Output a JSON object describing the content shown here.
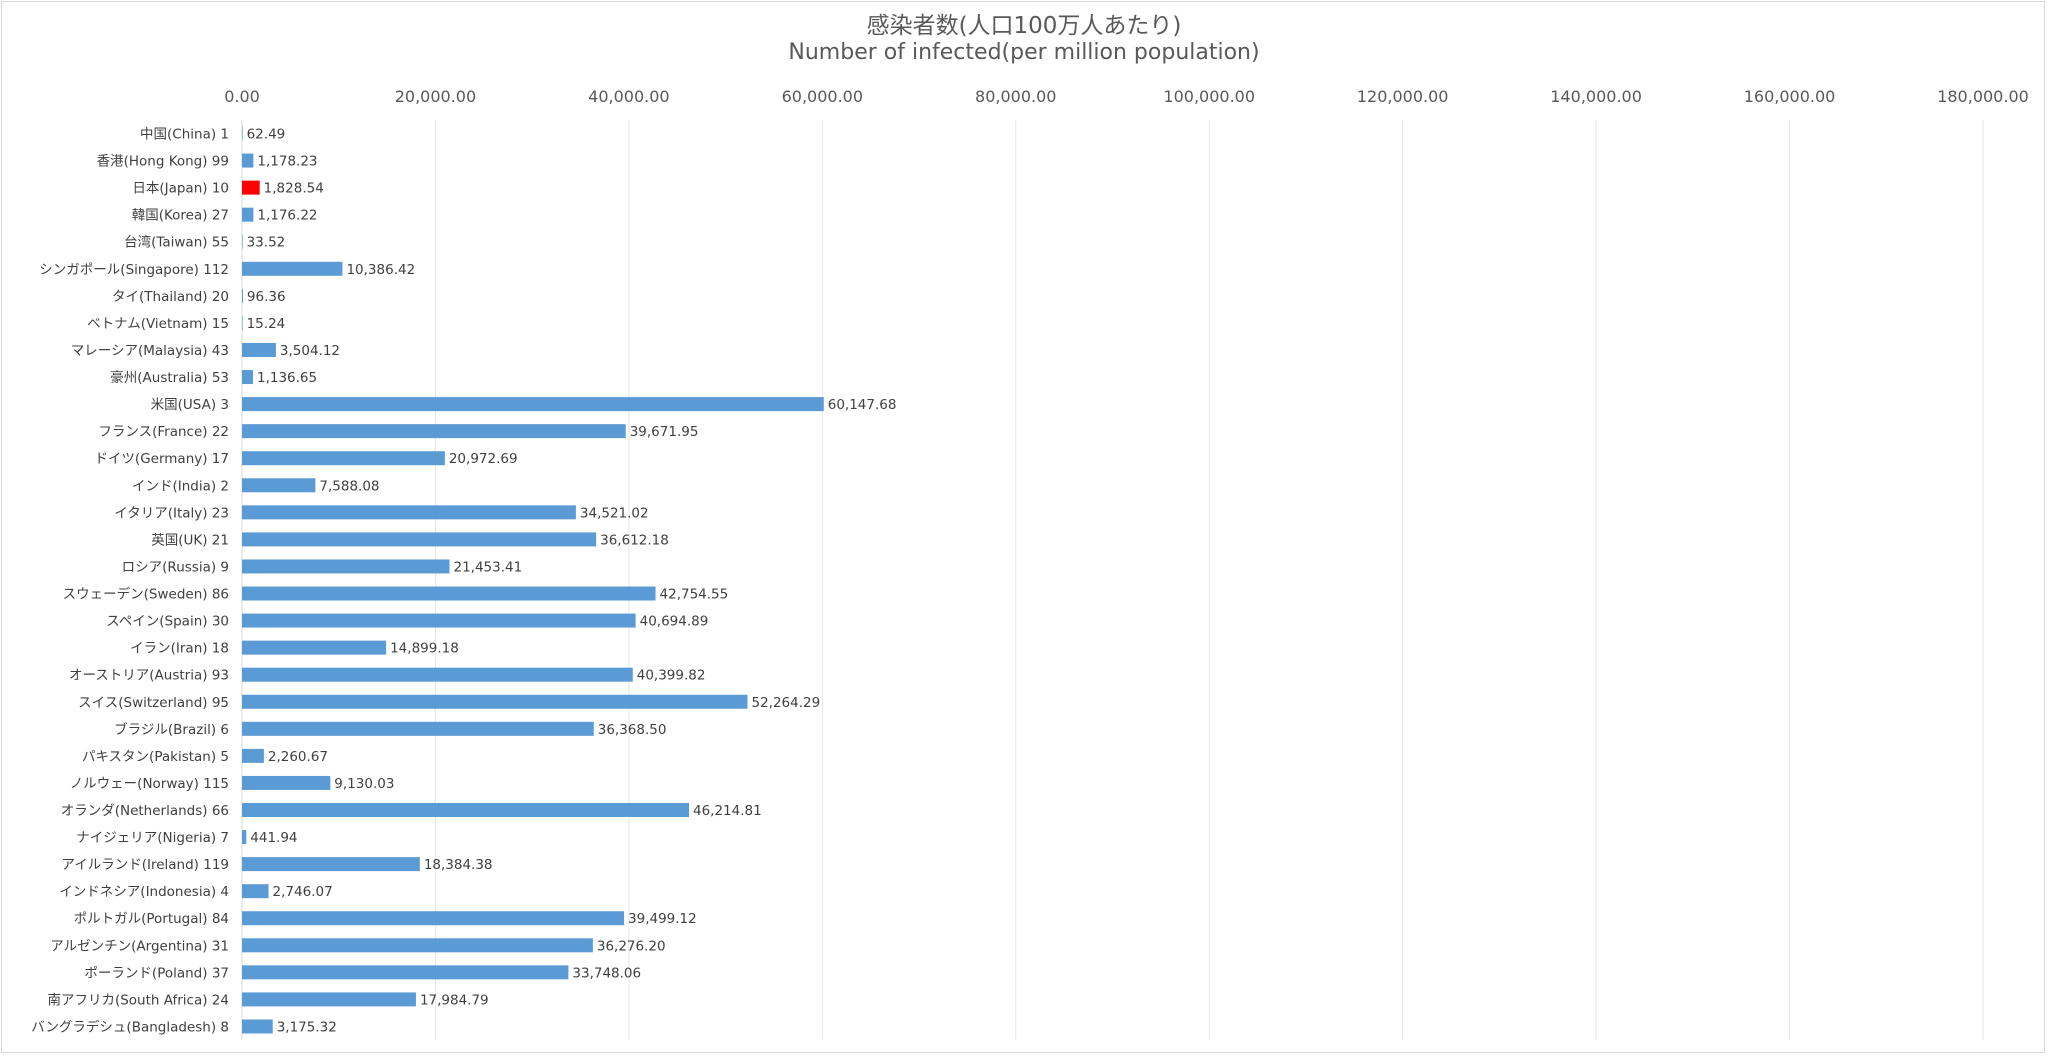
{
  "chart_data": {
    "type": "bar",
    "orientation": "horizontal",
    "title": "感染者数(人口100万人あたり)",
    "subtitle": "Number of infected(per million population)",
    "xlabel": "",
    "ylabel": "",
    "xlim": [
      0,
      180000
    ],
    "x_tick_values": [
      0,
      20000,
      40000,
      60000,
      80000,
      100000,
      120000,
      140000,
      160000,
      180000
    ],
    "x_tick_labels": [
      "0.00",
      "20,000.00",
      "40,000.00",
      "60,000.00",
      "80,000.00",
      "100,000.00",
      "120,000.00",
      "140,000.00",
      "160,000.00",
      "180,000.00"
    ],
    "x_axis_position": "top",
    "grid": "vertical",
    "legend": "none",
    "categories": [
      "中国(China) 1",
      "香港(Hong Kong) 99",
      "日本(Japan) 10",
      "韓国(Korea) 27",
      "台湾(Taiwan) 55",
      "シンガポール(Singapore) 112",
      "タイ(Thailand) 20",
      "ベトナム(Vietnam) 15",
      "マレーシア(Malaysia) 43",
      "豪州(Australia) 53",
      "米国(USA) 3",
      "フランス(France) 22",
      "ドイツ(Germany) 17",
      "インド(India) 2",
      "イタリア(Italy) 23",
      "英国(UK) 21",
      "ロシア(Russia) 9",
      "スウェーデン(Sweden) 86",
      "スペイン(Spain) 30",
      "イラン(Iran) 18",
      "オーストリア(Austria) 93",
      "スイス(Switzerland) 95",
      "ブラジル(Brazil) 6",
      "パキスタン(Pakistan) 5",
      "ノルウェー(Norway) 115",
      "オランダ(Netherlands) 66",
      "ナイジェリア(Nigeria) 7",
      "アイルランド(Ireland) 119",
      "インドネシア(Indonesia) 4",
      "ポルトガル(Portugal) 84",
      "アルゼンチン(Argentina) 31",
      "ポーランド(Poland) 37",
      "南アフリカ(South Africa) 24",
      "バングラデシュ(Bangladesh) 8"
    ],
    "values": [
      62.49,
      1178.23,
      1828.54,
      1176.22,
      33.52,
      10386.42,
      96.36,
      15.24,
      3504.12,
      1136.65,
      60147.68,
      39671.95,
      20972.69,
      7588.08,
      34521.02,
      36612.18,
      21453.41,
      42754.55,
      40694.89,
      14899.18,
      40399.82,
      52264.29,
      36368.5,
      2260.67,
      9130.03,
      46214.81,
      441.94,
      18384.38,
      2746.07,
      39499.12,
      36276.2,
      33748.06,
      17984.79,
      3175.32
    ],
    "value_labels": [
      "62.49",
      "1,178.23",
      "1,828.54",
      "1,176.22",
      "33.52",
      "10,386.42",
      "96.36",
      "15.24",
      "3,504.12",
      "1,136.65",
      "60,147.68",
      "39,671.95",
      "20,972.69",
      "7,588.08",
      "34,521.02",
      "36,612.18",
      "21,453.41",
      "42,754.55",
      "40,694.89",
      "14,899.18",
      "40,399.82",
      "52,264.29",
      "36,368.50",
      "2,260.67",
      "9,130.03",
      "46,214.81",
      "441.94",
      "18,384.38",
      "2,746.07",
      "39,499.12",
      "36,276.20",
      "33,748.06",
      "17,984.79",
      "3,175.32"
    ],
    "colors": {
      "bar": "#5b9bd5",
      "highlight_bar": "#ff0000",
      "highlight_category": "日本(Japan) 10",
      "grid": "#e6e6e6",
      "text": "#404040",
      "title": "#595959",
      "axis_labels": "#595959"
    }
  }
}
